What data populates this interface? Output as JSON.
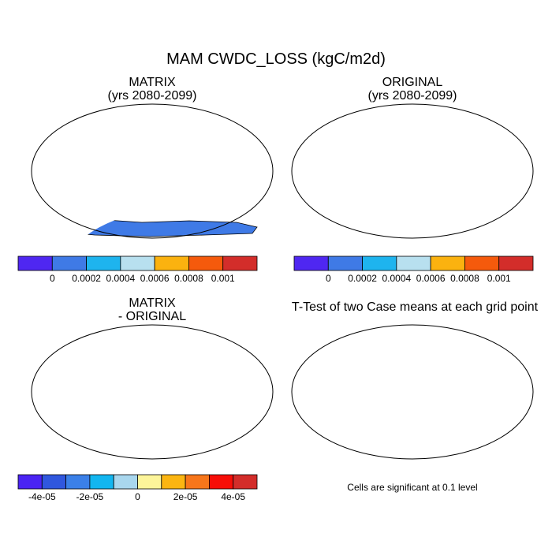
{
  "title": "MAM CWDC_LOSS (kgC/m2d)",
  "panels": {
    "top_left": {
      "title_line1": "MATRIX",
      "title_line2": "(yrs 2080-2099)"
    },
    "top_right": {
      "title_line1": "ORIGINAL",
      "title_line2": "(yrs 2080-2099)"
    },
    "bottom_left": {
      "title_line1": "MATRIX",
      "title_line2": "- ORIGINAL"
    },
    "bottom_right": {
      "title_line1": "T-Test of two Case means at each grid point"
    }
  },
  "colorbar_top": {
    "colors": [
      "#4f27f1",
      "#3f7ae6",
      "#1eb4ee",
      "#b8e0ef",
      "#fbb20f",
      "#f55a0c",
      "#d32d2a"
    ],
    "labels": [
      "0",
      "0.0002",
      "0.0004",
      "0.0006",
      "0.0008",
      "0.001"
    ]
  },
  "colorbar_bottom": {
    "colors": [
      "#4a24f3",
      "#3057de",
      "#3b80e8",
      "#13b6f0",
      "#a9d7ee",
      "#fdf59a",
      "#fbb511",
      "#f7761a",
      "#f70e08",
      "#d32d2a"
    ],
    "labels": [
      "-4e-05",
      "-2e-05",
      "0",
      "2e-05",
      "4e-05"
    ]
  },
  "significance_color": "#e8110e",
  "note": "Cells are significant at 0.1 level"
}
